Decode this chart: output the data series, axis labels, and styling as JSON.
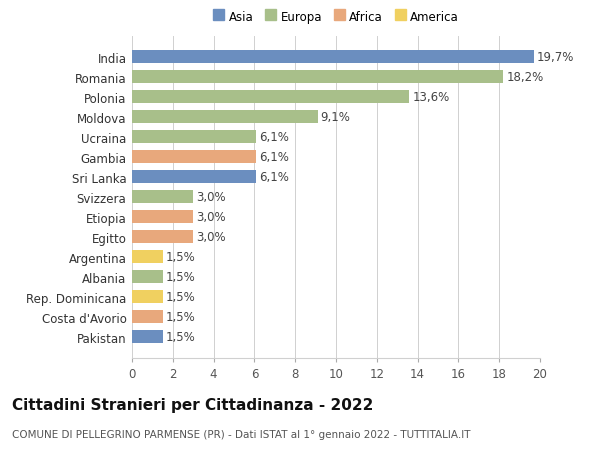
{
  "countries": [
    "India",
    "Romania",
    "Polonia",
    "Moldova",
    "Ucraina",
    "Gambia",
    "Sri Lanka",
    "Svizzera",
    "Etiopia",
    "Egitto",
    "Argentina",
    "Albania",
    "Rep. Dominicana",
    "Costa d'Avorio",
    "Pakistan"
  ],
  "values": [
    19.7,
    18.2,
    13.6,
    9.1,
    6.1,
    6.1,
    6.1,
    3.0,
    3.0,
    3.0,
    1.5,
    1.5,
    1.5,
    1.5,
    1.5
  ],
  "labels": [
    "19,7%",
    "18,2%",
    "13,6%",
    "9,1%",
    "6,1%",
    "6,1%",
    "6,1%",
    "3,0%",
    "3,0%",
    "3,0%",
    "1,5%",
    "1,5%",
    "1,5%",
    "1,5%",
    "1,5%"
  ],
  "continents": [
    "Asia",
    "Europa",
    "Europa",
    "Europa",
    "Europa",
    "Africa",
    "Asia",
    "Europa",
    "Africa",
    "Africa",
    "America",
    "Europa",
    "America",
    "Africa",
    "Asia"
  ],
  "continent_colors": {
    "Asia": "#6b8ebf",
    "Europa": "#a8bf8a",
    "Africa": "#e8a87c",
    "America": "#f0d060"
  },
  "legend_order": [
    "Asia",
    "Europa",
    "Africa",
    "America"
  ],
  "title": "Cittadini Stranieri per Cittadinanza - 2022",
  "subtitle": "COMUNE DI PELLEGRINO PARMENSE (PR) - Dati ISTAT al 1° gennaio 2022 - TUTTITALIA.IT",
  "xlim": [
    0,
    20
  ],
  "xticks": [
    0,
    2,
    4,
    6,
    8,
    10,
    12,
    14,
    16,
    18,
    20
  ],
  "background_color": "#ffffff",
  "grid_color": "#d0d0d0",
  "bar_height": 0.65,
  "label_fontsize": 8.5,
  "tick_fontsize": 8.5,
  "title_fontsize": 11,
  "subtitle_fontsize": 7.5
}
